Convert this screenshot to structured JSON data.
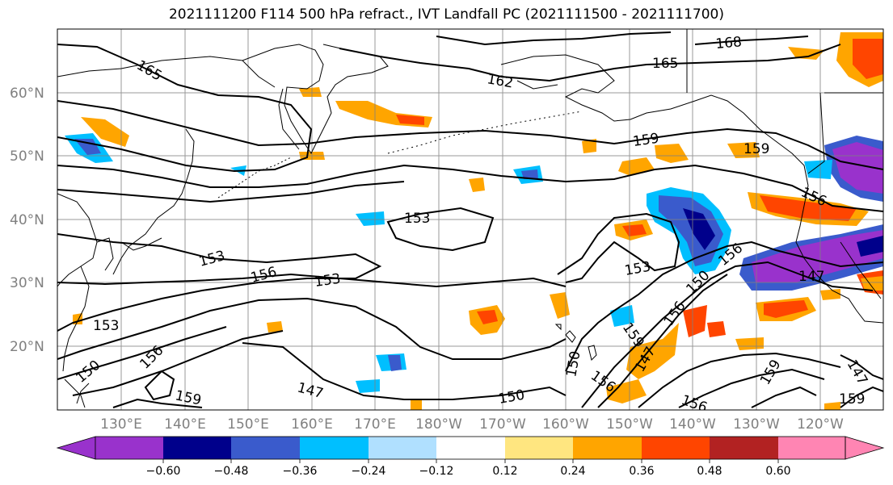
{
  "title": "2021111200 F114 500 hPa refract., IVT Landfall PC (2021111500 - 2021111700)",
  "map": {
    "lat_labels": [
      "60°N",
      "50°N",
      "40°N",
      "30°N",
      "20°N"
    ],
    "lon_labels": [
      "130°E",
      "140°E",
      "150°E",
      "160°E",
      "170°E",
      "180°W",
      "170°W",
      "160°W",
      "150°W",
      "140°W",
      "130°W",
      "120°W"
    ],
    "extent": {
      "lon_min": 120,
      "lon_max": 250,
      "lat_min": 10,
      "lat_max": 70
    },
    "grid": true,
    "contour_labels": [
      "165",
      "162",
      "168",
      "165",
      "159",
      "159",
      "156",
      "153",
      "153",
      "156",
      "153",
      "153",
      "156",
      "147",
      "153",
      "150",
      "156",
      "159",
      "147",
      "150",
      "150",
      "159",
      "156",
      "159",
      "156",
      "147",
      "159",
      "156",
      "150",
      "147"
    ]
  },
  "colorbar": {
    "ticks": [
      "−0.60",
      "−0.48",
      "−0.36",
      "−0.24",
      "−0.12",
      "0.12",
      "0.24",
      "0.36",
      "0.48",
      "0.60"
    ],
    "colors": [
      "#9932cc",
      "#00008b",
      "#3a5bcc",
      "#00bfff",
      "#b0e0ff",
      "#ffffff",
      "#ffe680",
      "#ffa500",
      "#ff4500",
      "#b22222",
      "#ff85b3"
    ]
  }
}
